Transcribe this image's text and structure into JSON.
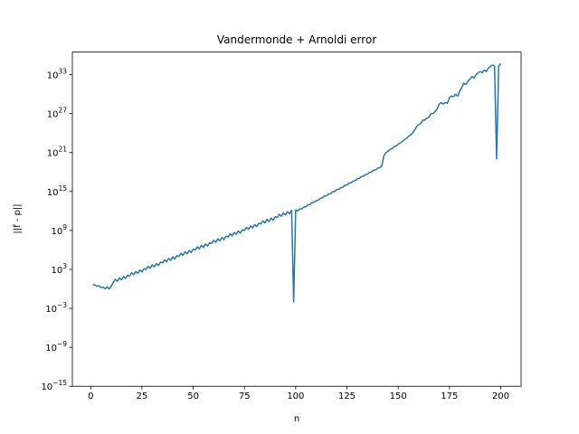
{
  "chart_data": {
    "type": "line",
    "title": "Vandermonde + Arnoldi error",
    "x_label": "n",
    "y_label": "||f - p||",
    "yscale": "log",
    "color": "#1f77b4",
    "xlim": [
      -8.95,
      209.95
    ],
    "ylim": [
      1e-15,
      3e+36
    ],
    "xticks": [
      0,
      25,
      50,
      75,
      100,
      125,
      150,
      175,
      200
    ],
    "yticks": [
      {
        "value": 1e-15,
        "label": "10^−15"
      },
      {
        "value": 1e-09,
        "label": "10^−9"
      },
      {
        "value": 0.001,
        "label": "10^−3"
      },
      {
        "value": 1000.0,
        "label": "10^3"
      },
      {
        "value": 1000000000.0,
        "label": "10^9"
      },
      {
        "value": 1000000000000000.0,
        "label": "10^15"
      },
      {
        "value": 1e+21,
        "label": "10^21"
      },
      {
        "value": 1e+27,
        "label": "10^27"
      },
      {
        "value": 1e+33,
        "label": "10^33"
      }
    ],
    "x": [
      1,
      2,
      3,
      4,
      5,
      6,
      7,
      8,
      9,
      10,
      11,
      12,
      13,
      14,
      15,
      16,
      17,
      18,
      19,
      20,
      21,
      22,
      23,
      24,
      25,
      26,
      27,
      28,
      29,
      30,
      31,
      32,
      33,
      34,
      35,
      36,
      37,
      38,
      39,
      40,
      41,
      42,
      43,
      44,
      45,
      46,
      47,
      48,
      49,
      50,
      51,
      52,
      53,
      54,
      55,
      56,
      57,
      58,
      59,
      60,
      61,
      62,
      63,
      64,
      65,
      66,
      67,
      68,
      69,
      70,
      71,
      72,
      73,
      74,
      75,
      76,
      77,
      78,
      79,
      80,
      81,
      82,
      83,
      84,
      85,
      86,
      87,
      88,
      89,
      90,
      91,
      92,
      93,
      94,
      95,
      96,
      97,
      98,
      99,
      100,
      101,
      102,
      103,
      104,
      105,
      106,
      107,
      108,
      109,
      110,
      111,
      112,
      113,
      114,
      115,
      116,
      117,
      118,
      119,
      120,
      121,
      122,
      123,
      124,
      125,
      126,
      127,
      128,
      129,
      130,
      131,
      132,
      133,
      134,
      135,
      136,
      137,
      138,
      139,
      140,
      141,
      142,
      143,
      144,
      145,
      146,
      147,
      148,
      149,
      150,
      151,
      152,
      153,
      154,
      155,
      156,
      157,
      158,
      159,
      160,
      161,
      162,
      163,
      164,
      165,
      166,
      167,
      168,
      169,
      170,
      171,
      172,
      173,
      174,
      175,
      176,
      177,
      178,
      179,
      180,
      181,
      182,
      183,
      184,
      185,
      186,
      187,
      188,
      189,
      190,
      191,
      192,
      193,
      194,
      195,
      196,
      197,
      198,
      199,
      200
    ],
    "values": [
      5,
      4,
      2.5,
      3,
      1.6,
      2,
      1,
      2,
      1,
      2.5,
      10,
      30,
      15,
      50,
      25,
      80,
      40,
      130,
      100,
      300,
      150,
      500,
      250,
      800,
      400,
      1300,
      1000.0,
      3000.0,
      1500.0,
      5000.0,
      2500.0,
      8000.0,
      4000.0,
      13000.0,
      10000.0,
      30000.0,
      15000.0,
      50000.0,
      25000.0,
      80000.0,
      40000.0,
      130000.0,
      100000.0,
      300000.0,
      150000.0,
      500000.0,
      250000.0,
      800000.0,
      400000.0,
      1300000.0,
      1000000.0,
      3000000.0,
      1500000.0,
      5000000.0,
      2500000.0,
      8000000.0,
      4000000.0,
      13000000.0,
      10000000.0,
      30000000.0,
      15000000.0,
      50000000.0,
      25000000.0,
      80000000.0,
      40000000.0,
      130000000.0,
      100000000.0,
      300000000.0,
      150000000.0,
      500000000.0,
      250000000.0,
      800000000.0,
      400000000.0,
      1300000000.0,
      1000000000.0,
      3000000000.0,
      1500000000.0,
      5000000000.0,
      2500000000.0,
      8000000000.0,
      4000000000.0,
      13000000000.0,
      10000000000.0,
      30000000000.0,
      15000000000.0,
      50000000000.0,
      25000000000.0,
      80000000000.0,
      40000000000.0,
      130000000000.0,
      100000000000.0,
      300000000000.0,
      150000000000.0,
      500000000000.0,
      250000000000.0,
      800000000000.0,
      400000000000.0,
      1300000000000.0,
      0.01,
      1500000000000.0,
      1000000000000.0,
      2000000000000.0,
      2200000000000.0,
      4000000000000.0,
      4600000000000.0,
      9000000000000.0,
      10000000000000.0,
      20000000000000.0,
      22000000000000.0,
      40000000000000.0,
      46000000000000.0,
      90000000000000.0,
      100000000000000.0,
      200000000000000.0,
      220000000000000.0,
      400000000000000.0,
      460000000000000.0,
      900000000000000.0,
      1000000000000000.0,
      2000000000000000.0,
      2200000000000000.0,
      4000000000000000.0,
      4600000000000000.0,
      9000000000000000.0,
      1e+16,
      2e+16,
      2.2e+16,
      4e+16,
      4.6e+16,
      9e+16,
      1e+17,
      2e+17,
      2.2e+17,
      4e+17,
      4.6e+17,
      9e+17,
      1e+18,
      2e+18,
      2.2e+18,
      4e+18,
      4.6e+18,
      9e+18,
      3e+20,
      1e+21,
      1.5e+21,
      3e+21,
      4e+21,
      8e+21,
      1e+22,
      2e+22,
      3e+22,
      5e+22,
      1e+23,
      1.5e+23,
      3e+23,
      5e+23,
      1e+24,
      3e+24,
      1e+25,
      2e+25,
      3e+25,
      1e+26,
      1e+26,
      2e+26,
      3e+26,
      1e+27,
      1e+27,
      2e+27,
      5e+27,
      3e+28,
      5e+28,
      3e+28,
      5e+28,
      4e+28,
      3e+29,
      5e+29,
      4e+29,
      1e+30,
      5e+29,
      3e+30,
      1e+31,
      5e+31,
      3e+31,
      1e+32,
      2e+32,
      5e+32,
      3e+32,
      1e+33,
      2e+33,
      3e+33,
      2e+33,
      5e+33,
      3e+33,
      1e+34,
      2e+34,
      3e+34,
      2e+34,
      1e+20,
      2e+34,
      5e+34
    ]
  }
}
